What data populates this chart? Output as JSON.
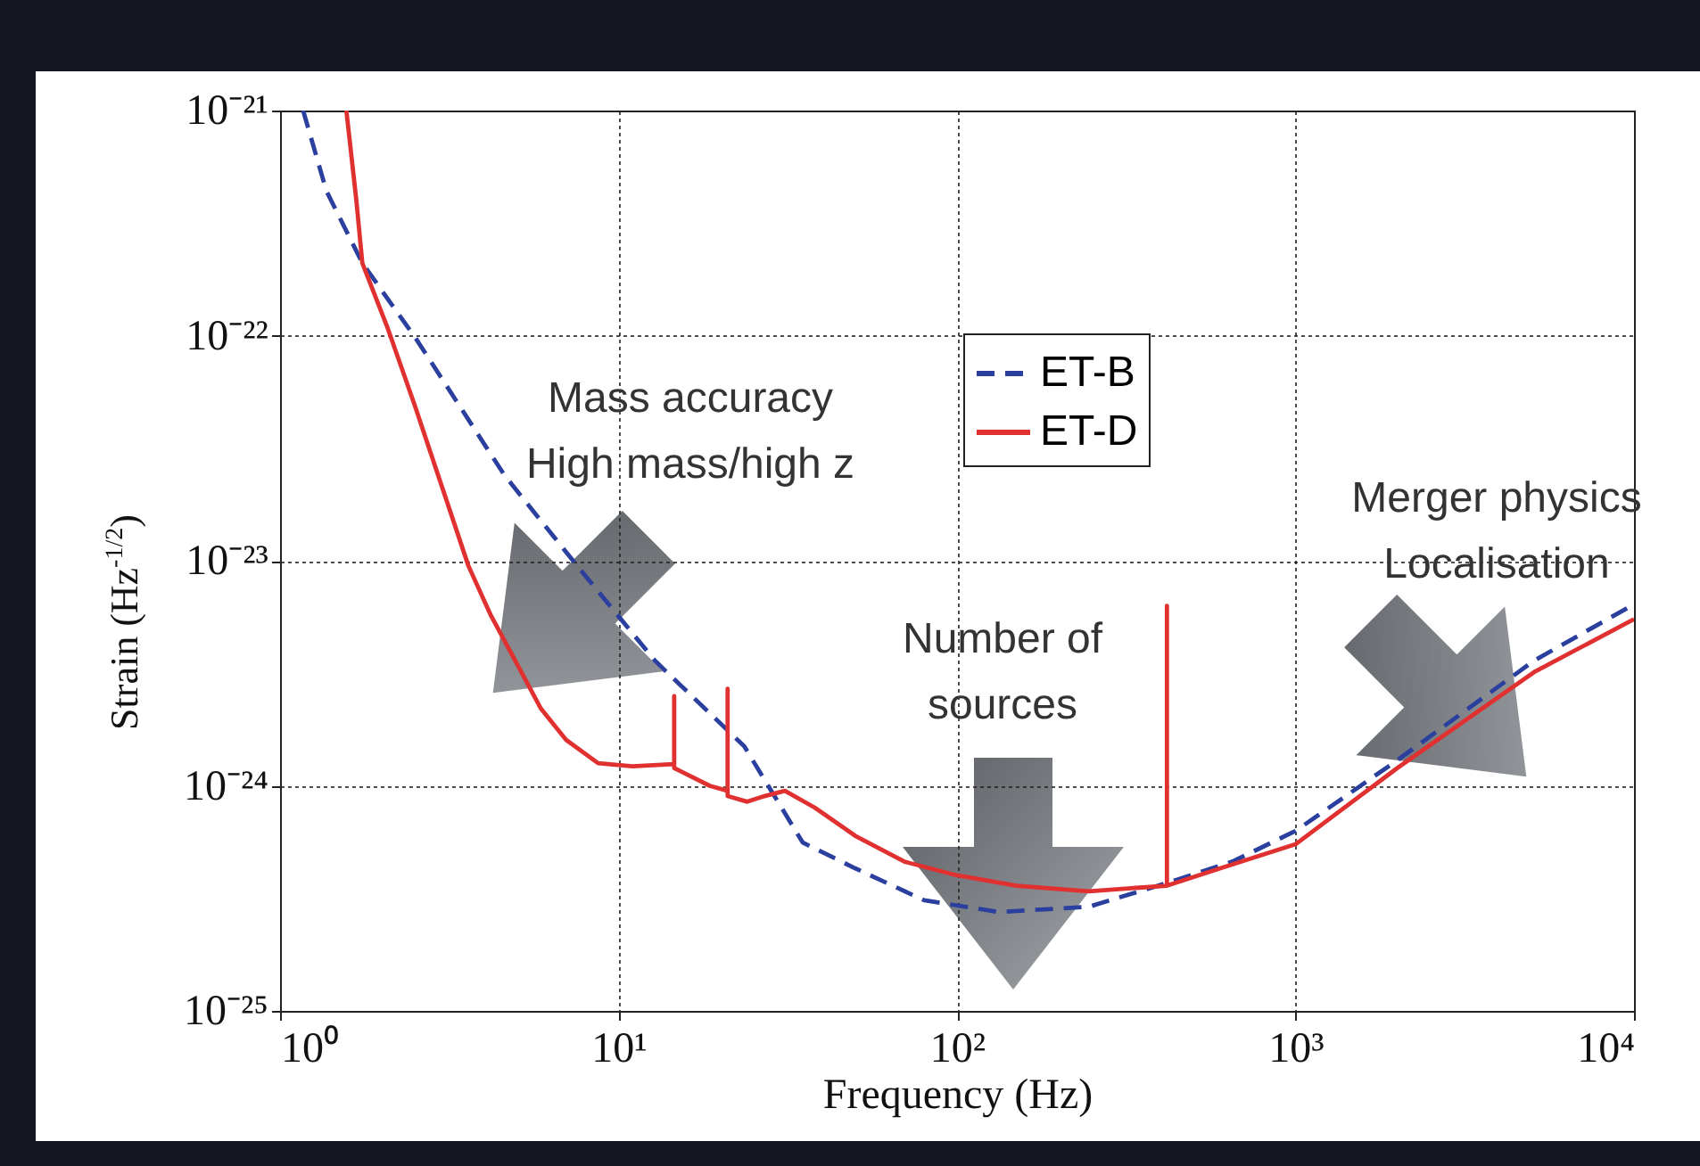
{
  "chart_data": {
    "type": "line",
    "xlabel": "Frequency (Hz)",
    "ylabel": "Strain (Hz$^{-1/2}$)",
    "log": "xy",
    "grid": true,
    "legend": "top",
    "xlim": [
      1,
      10000
    ],
    "ylim": [
      1e-25,
      1e-21
    ],
    "xticks": [
      {
        "value": 1,
        "label": "10⁰"
      },
      {
        "value": 10,
        "label": "10¹"
      },
      {
        "value": 100,
        "label": "10²"
      },
      {
        "value": 1000,
        "label": "10³"
      },
      {
        "value": 10000,
        "label": "10⁴"
      }
    ],
    "yticks": [
      {
        "value": 1e-25,
        "label": "10⁻²⁵"
      },
      {
        "value": 1e-24,
        "label": "10⁻²⁴"
      },
      {
        "value": 1e-23,
        "label": "10⁻²³"
      },
      {
        "value": 1e-22,
        "label": "10⁻²²"
      },
      {
        "value": 1e-21,
        "label": "10⁻²¹"
      }
    ],
    "series": [
      {
        "name": "ET-B",
        "color": "#2b3f9e",
        "line_style": "dashed",
        "x": [
          1.17,
          1.37,
          1.75,
          2.52,
          4.6,
          7.5,
          12.8,
          23.5,
          35,
          50,
          80,
          133,
          245,
          417,
          650,
          1000,
          2000,
          5070,
          10000
        ],
        "values": [
          1e-21,
          4.4e-22,
          2.1e-22,
          9.7e-23,
          2.4e-23,
          9.6e-24,
          3.6e-24,
          1.5e-24,
          5.6e-25,
          4.3e-25,
          3.1e-25,
          2.75e-25,
          2.9e-25,
          3.7e-25,
          4.6e-25,
          6.3e-25,
          1.3e-24,
          3.6e-24,
          6.4e-24
        ]
      },
      {
        "name": "ET-D",
        "color": "#e03030",
        "line_style": "solid",
        "x": [
          1.57,
          1.68,
          1.75,
          2.07,
          2.5,
          3.6,
          4.2,
          5,
          5.9,
          7,
          8.7,
          11,
          14.6,
          14.6,
          14.6,
          18.6,
          21,
          21,
          21,
          24,
          27,
          31,
          38,
          50,
          70,
          100,
          150,
          245,
          417,
          417,
          417,
          600,
          1000,
          2000,
          5070,
          10000
        ],
        "values": [
          1e-21,
          4e-22,
          2.1e-22,
          1.1e-22,
          4.9e-23,
          9.5e-24,
          5.7e-24,
          3.5e-24,
          2.2e-24,
          1.6e-24,
          1.26e-24,
          1.22e-24,
          1.25e-24,
          2.5e-24,
          1.2e-24,
          1e-24,
          9.5e-25,
          2.7e-24,
          9e-25,
          8.5e-25,
          9e-25,
          9.5e-25,
          8e-25,
          6e-25,
          4.6e-25,
          4e-25,
          3.6e-25,
          3.4e-25,
          3.6e-25,
          6.3e-24,
          3.6e-25,
          4.3e-25,
          5.5e-25,
          1.2e-24,
          3.2e-24,
          5.5e-24
        ]
      }
    ],
    "annotations": [
      "Mass accuracy\nHigh mass/high z",
      "Number of\nsources",
      "Merger physics\nLocalisation"
    ]
  }
}
